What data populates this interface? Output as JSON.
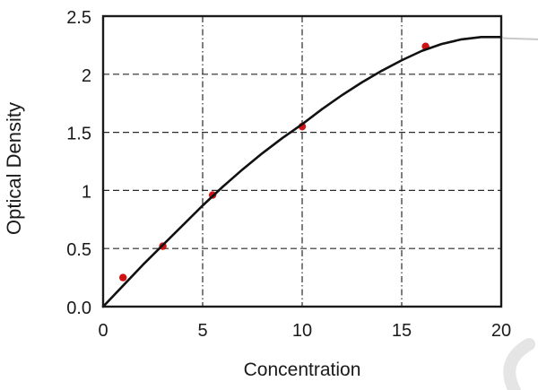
{
  "chart_data": {
    "type": "scatter",
    "title": "",
    "xlabel": "Concentration",
    "ylabel": "Optical Density",
    "xlim": [
      0,
      20
    ],
    "ylim": [
      0,
      2.5
    ],
    "x_ticks": [
      0,
      5,
      10,
      15,
      20
    ],
    "x_tick_labels": [
      "0",
      "5",
      "10",
      "15",
      "20"
    ],
    "y_ticks": [
      0,
      0.5,
      1,
      1.5,
      2,
      2.5
    ],
    "y_tick_labels": [
      "0.0",
      "0.5",
      "1",
      "1.5",
      "2",
      "2.5"
    ],
    "grid": true,
    "legend": false,
    "axis_color": "#1a1a1a",
    "grid_color": "#2a2a2a",
    "series": [
      {
        "name": "measured-points",
        "type": "scatter",
        "color": "#d01215",
        "x": [
          1,
          3,
          5.5,
          10,
          16.2
        ],
        "y": [
          0.25,
          0.52,
          0.96,
          1.55,
          2.24
        ]
      },
      {
        "name": "fitted-curve",
        "type": "line",
        "color": "#111111",
        "x": [
          0,
          1,
          2,
          3,
          4,
          5,
          6,
          7,
          8,
          9,
          10,
          11,
          12,
          13,
          14,
          15,
          16,
          17,
          18,
          19,
          20
        ],
        "y": [
          0,
          0.18,
          0.36,
          0.53,
          0.7,
          0.87,
          1.03,
          1.18,
          1.32,
          1.45,
          1.57,
          1.7,
          1.82,
          1.93,
          2.03,
          2.12,
          2.2,
          2.26,
          2.3,
          2.32,
          2.32
        ]
      }
    ],
    "curve_overflow": {
      "x": [
        20.1,
        21.85
      ],
      "y": [
        2.31,
        2.3
      ],
      "color": "#c9c9c9"
    }
  },
  "watermark": {
    "label": "page-corner-arc",
    "color": "#e5e5e5"
  }
}
